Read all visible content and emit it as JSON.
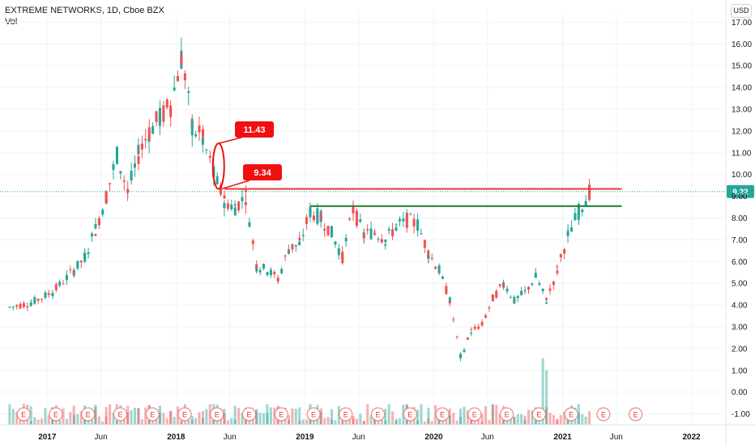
{
  "header": {
    "title": "EXTREME NETWORKS, 1D, Cboe BZX",
    "volume_label": "Vol",
    "currency_button": "USD"
  },
  "colors": {
    "up": "#26a69a",
    "down": "#ef5350",
    "resistance": "#e53935",
    "support": "#1b7a2b",
    "annotation": "#f01010",
    "price_line": "#26a69a",
    "earnings": "#e57373"
  },
  "chart_data": {
    "type": "candlestick",
    "title": "EXTREME NETWORKS, 1D, Cboe BZX",
    "y_axis": {
      "min": -1.5,
      "max": 17.5,
      "ticks": [
        "17.00",
        "16.00",
        "15.00",
        "14.00",
        "13.00",
        "12.00",
        "11.00",
        "10.00",
        "9.00",
        "8.00",
        "7.00",
        "6.00",
        "5.00",
        "4.00",
        "3.00",
        "2.00",
        "1.00",
        "0.00",
        "-1.00"
      ],
      "position": "right"
    },
    "x_axis": {
      "ticks": [
        "2017",
        "Jun",
        "2018",
        "Jun",
        "2019",
        "Jun",
        "2020",
        "Jun",
        "2021",
        "Jun",
        "2022"
      ]
    },
    "price_path": [
      [
        "2016-09",
        3.9
      ],
      [
        "2016-11",
        4.1
      ],
      [
        "2017-01",
        4.6
      ],
      [
        "2017-03",
        5.6
      ],
      [
        "2017-04",
        6.2
      ],
      [
        "2017-05",
        7.5
      ],
      [
        "2017-06",
        9.0
      ],
      [
        "2017-07",
        10.9
      ],
      [
        "2017-08",
        9.2
      ],
      [
        "2017-09",
        10.9
      ],
      [
        "2017-10",
        12.0
      ],
      [
        "2017-11",
        12.6
      ],
      [
        "2017-12",
        13.2
      ],
      [
        "2018-01",
        15.4
      ],
      [
        "2018-02",
        12.2
      ],
      [
        "2018-03",
        11.6
      ],
      [
        "2018-04",
        10.0
      ],
      [
        "2018-05",
        8.8
      ],
      [
        "2018-06",
        8.5
      ],
      [
        "2018-07",
        9.0
      ],
      [
        "2018-08",
        5.8
      ],
      [
        "2018-09",
        5.6
      ],
      [
        "2018-10",
        5.2
      ],
      [
        "2018-11",
        6.6
      ],
      [
        "2018-12",
        6.8
      ],
      [
        "2019-01",
        8.3
      ],
      [
        "2019-02",
        8.0
      ],
      [
        "2019-03",
        7.3
      ],
      [
        "2019-04",
        6.2
      ],
      [
        "2019-05",
        8.4
      ],
      [
        "2019-06",
        7.2
      ],
      [
        "2019-07",
        7.4
      ],
      [
        "2019-08",
        7.0
      ],
      [
        "2019-09",
        7.6
      ],
      [
        "2019-10",
        7.9
      ],
      [
        "2019-11",
        7.7
      ],
      [
        "2019-12",
        6.4
      ],
      [
        "2020-01",
        5.6
      ],
      [
        "2020-02",
        4.2
      ],
      [
        "2020-03",
        1.6
      ],
      [
        "2020-04",
        2.8
      ],
      [
        "2020-05",
        3.1
      ],
      [
        "2020-06",
        4.3
      ],
      [
        "2020-07",
        5.0
      ],
      [
        "2020-08",
        4.2
      ],
      [
        "2020-09",
        4.6
      ],
      [
        "2020-10",
        5.3
      ],
      [
        "2020-11",
        4.2
      ],
      [
        "2020-12",
        5.6
      ],
      [
        "2021-01",
        7.2
      ],
      [
        "2021-02",
        8.3
      ],
      [
        "2021-03",
        9.22
      ]
    ],
    "horizontal_lines": [
      {
        "value": 9.34,
        "from": "2018-05",
        "to": "2021-06",
        "color": "resistance"
      },
      {
        "value": 8.55,
        "from": "2019-01",
        "to": "2021-06",
        "color": "support"
      }
    ],
    "annotations": [
      {
        "label": "11.43",
        "value": 11.43,
        "at": "2018-04"
      },
      {
        "label": "9.34",
        "value": 9.34,
        "at": "2018-05"
      }
    ],
    "current_price": {
      "value": 9.22,
      "label": "9.22"
    },
    "earnings_marker": "E"
  }
}
